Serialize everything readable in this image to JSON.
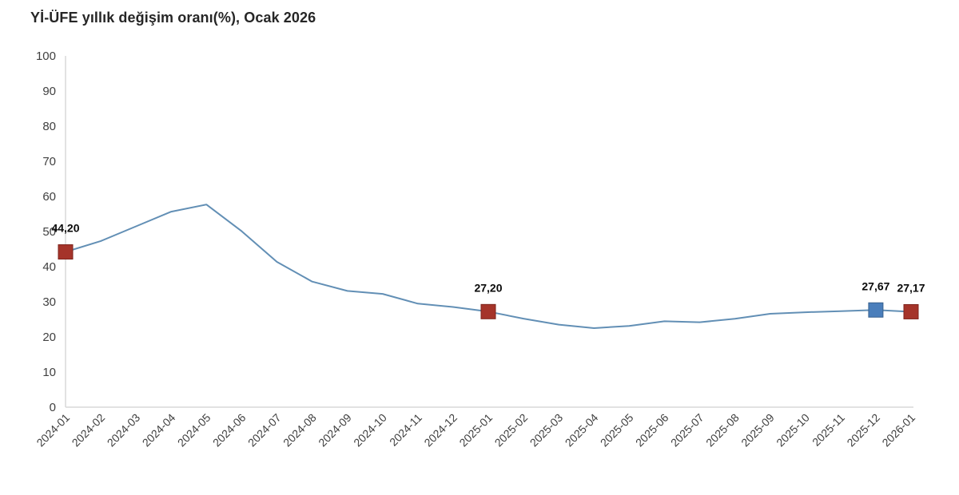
{
  "title": "Yİ-ÜFE yıllık değişim oranı(%), Ocak 2026",
  "colors": {
    "line": "#628fb5",
    "axis": "#d9d9d9",
    "tick_text": "#404040",
    "red_marker_fill": "#a5342a",
    "red_marker_stroke": "#7e241c",
    "blue_marker_fill": "#4a7ebb",
    "blue_marker_stroke": "#38618e",
    "title_text": "#262626"
  },
  "chart_data": {
    "type": "line",
    "title": "Yİ-ÜFE yıllık değişim oranı(%), Ocak 2026",
    "categories": [
      "2024-01",
      "2024-02",
      "2024-03",
      "2024-04",
      "2024-05",
      "2024-06",
      "2024-07",
      "2024-08",
      "2024-09",
      "2024-10",
      "2024-11",
      "2024-12",
      "2025-01",
      "2025-02",
      "2025-03",
      "2025-04",
      "2025-05",
      "2025-06",
      "2025-07",
      "2025-08",
      "2025-09",
      "2025-10",
      "2025-11",
      "2025-12",
      "2026-01"
    ],
    "values": [
      44.2,
      47.29,
      51.47,
      55.66,
      57.68,
      50.09,
      41.37,
      35.75,
      33.09,
      32.24,
      29.47,
      28.52,
      27.2,
      25.21,
      23.5,
      22.5,
      23.13,
      24.45,
      24.19,
      25.16,
      26.59,
      27.02,
      27.35,
      27.67,
      27.17
    ],
    "xlabel": "",
    "ylabel": "",
    "ylim": [
      0,
      100
    ],
    "yticks": [
      0,
      10,
      20,
      30,
      40,
      50,
      60,
      70,
      80,
      90,
      100
    ],
    "grid": false,
    "legend": false,
    "annotations": [
      {
        "index": 0,
        "label": "44,20",
        "marker": "red"
      },
      {
        "index": 12,
        "label": "27,20",
        "marker": "red"
      },
      {
        "index": 23,
        "label": "27,67",
        "marker": "blue"
      },
      {
        "index": 24,
        "label": "27,17",
        "marker": "red"
      }
    ]
  }
}
